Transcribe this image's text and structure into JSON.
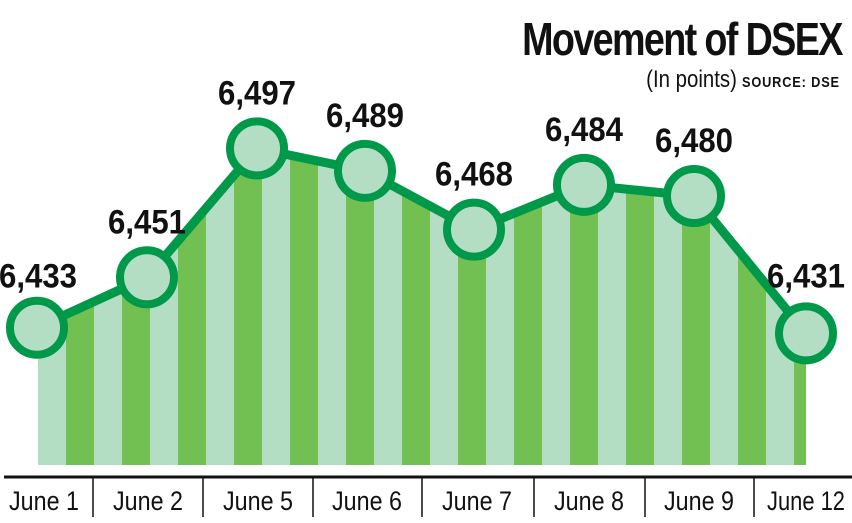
{
  "chart_data": {
    "type": "area",
    "title": "Movement of DSEX",
    "subtitle": "(In points)",
    "source": "SOURCE: DSE",
    "categories": [
      "June 1",
      "June 2",
      "June 5",
      "June 6",
      "June 7",
      "June 8",
      "June 9",
      "June 12"
    ],
    "values": [
      6433,
      6451,
      6497,
      6489,
      6468,
      6484,
      6480,
      6431
    ],
    "data_labels": [
      "6,433",
      "6,451",
      "6,497",
      "6,489",
      "6,468",
      "6,484",
      "6,480",
      "6,431"
    ],
    "ylim": [
      6384,
      6500
    ],
    "grid": false,
    "colors": {
      "line": "#00994a",
      "fill_light": "#b3dec4",
      "fill_dark": "#72bf52",
      "marker_fill": "#b3dec4"
    }
  }
}
